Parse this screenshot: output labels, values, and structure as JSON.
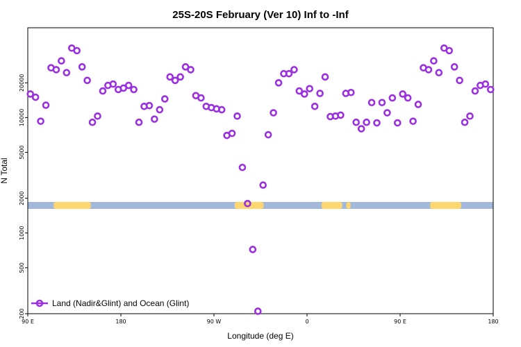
{
  "chart_data": {
    "type": "scatter",
    "title": "25S-20S February (Ver 10)   Inf to -Inf",
    "xlabel": "Longitude (deg E)",
    "ylabel": "N Total",
    "xlim": [
      90,
      540
    ],
    "ylim": [
      200,
      60000
    ],
    "yscale": "log",
    "x_ticks": [
      {
        "value": 90,
        "label": "90 E"
      },
      {
        "value": 180,
        "label": "180"
      },
      {
        "value": 270,
        "label": "90 W"
      },
      {
        "value": 360,
        "label": "0"
      },
      {
        "value": 450,
        "label": "90 E"
      },
      {
        "value": 540,
        "label": "180"
      }
    ],
    "y_ticks": [
      {
        "value": 200,
        "label": "200"
      },
      {
        "value": 500,
        "label": "500"
      },
      {
        "value": 1000,
        "label": "1000"
      },
      {
        "value": 2000,
        "label": "2000"
      },
      {
        "value": 5000,
        "label": "5000"
      },
      {
        "value": 10000,
        "label": "10000"
      },
      {
        "value": 20000,
        "label": "20000"
      }
    ],
    "legend": {
      "position": "bottom-left",
      "label": "Land (Nadir&Glint) and Ocean (Glint)"
    },
    "colors": {
      "series": "#9b30e0",
      "ocean": "#a3b9dc",
      "land": "#fcd66e"
    },
    "land_spans": [
      [
        115,
        151
      ],
      [
        290,
        318
      ],
      [
        374,
        394
      ],
      [
        398,
        402
      ],
      [
        479,
        509
      ]
    ],
    "series": [
      {
        "x": [
          92.5,
          97.5,
          102.5,
          107.5,
          112.5,
          117.5,
          122.5,
          127.5,
          132.5,
          137.5,
          142.5,
          147.5,
          152.5,
          157.5,
          162.5,
          167.5,
          172.5,
          177.5,
          182.5,
          187.5,
          192.5,
          197.5,
          202.5,
          207.5,
          212.5,
          217.5,
          222.5,
          227.5,
          232.5,
          237.5,
          242.5,
          247.5,
          252.5,
          257.5,
          262.5,
          267.5,
          272.5,
          277.5,
          282.5,
          287.5,
          292.5,
          297.5,
          302.5,
          307.5,
          312.5,
          317.5,
          322.5,
          327.5,
          332.5,
          337.5,
          342.5,
          347.5,
          352.5,
          357.5,
          362.5,
          367.5,
          372.5,
          377.5,
          382.5,
          387.5,
          392.5,
          397.5,
          402.5,
          407.5,
          412.5,
          417.5,
          422.5,
          427.5,
          432.5,
          437.5,
          442.5,
          447.5,
          452.5,
          457.5,
          462.5,
          467.5,
          472.5,
          477.5,
          482.5,
          487.5,
          492.5,
          497.5,
          502.5,
          507.5,
          512.5,
          517.5,
          522.5,
          527.5,
          532.5,
          537.5
        ],
        "y": [
          16000,
          15000,
          9300,
          12800,
          27000,
          26000,
          31000,
          24500,
          40000,
          38000,
          27500,
          21000,
          9100,
          10300,
          17000,
          19000,
          19500,
          17500,
          18000,
          19000,
          17500,
          9100,
          12500,
          12700,
          9700,
          11700,
          14500,
          22500,
          21000,
          22500,
          27500,
          26000,
          15500,
          14800,
          12500,
          12200,
          11900,
          11700,
          7000,
          7300,
          10300,
          3700,
          1800,
          720,
          210,
          2600,
          7100,
          11000,
          20000,
          24000,
          24000,
          26000,
          17000,
          16000,
          17800,
          12500,
          16200,
          22500,
          10200,
          10300,
          10500,
          16200,
          16500,
          9100,
          8000,
          9100,
          13500,
          9000,
          13500,
          11000,
          14800,
          9000,
          16000,
          14800,
          9300,
          13000,
          27000,
          26000,
          31000,
          24500,
          40000,
          38000,
          27500,
          21000,
          9100,
          10300,
          17000,
          19000,
          19500,
          17500
        ]
      }
    ]
  }
}
